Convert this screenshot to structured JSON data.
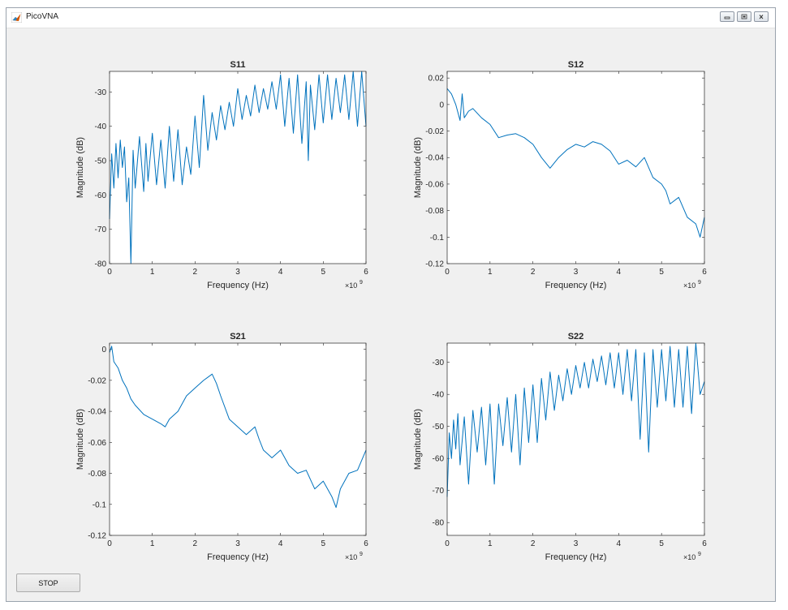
{
  "window": {
    "title": "PicoVNA",
    "app_icon": "matlab-icon",
    "controls": [
      "minimize-icon",
      "restore-icon",
      "close-icon"
    ]
  },
  "stop_button": {
    "label": "STOP"
  },
  "colors": {
    "line": "#0072bd",
    "axis": "#262626",
    "figure_bg": "#f0f0f0",
    "axes_bg": "#ffffff"
  },
  "chart_data": [
    {
      "type": "line",
      "title": "S11",
      "xlabel": "Frequency (Hz)",
      "ylabel": "Magnitude (dB)",
      "x_exponent_label": "×10",
      "x_exponent_power": "9",
      "xlim": [
        0,
        6
      ],
      "ylim": [
        -80,
        -24
      ],
      "xticks": [
        0,
        1,
        2,
        3,
        4,
        5,
        6
      ],
      "yticks": [
        -80,
        -70,
        -60,
        -50,
        -40,
        -30
      ],
      "xtick_labels": [
        "0",
        "1",
        "2",
        "3",
        "4",
        "5",
        "6"
      ],
      "ytick_labels": [
        "-80",
        "-70",
        "-60",
        "-50",
        "-40",
        "-30"
      ],
      "series": [
        {
          "x": [
            0,
            0.05,
            0.1,
            0.15,
            0.2,
            0.25,
            0.3,
            0.35,
            0.4,
            0.45,
            0.5,
            0.55,
            0.6,
            0.7,
            0.8,
            0.85,
            0.9,
            1.0,
            1.1,
            1.2,
            1.3,
            1.4,
            1.5,
            1.6,
            1.7,
            1.8,
            1.9,
            2.0,
            2.1,
            2.2,
            2.3,
            2.4,
            2.5,
            2.6,
            2.7,
            2.8,
            2.9,
            3.0,
            3.1,
            3.2,
            3.3,
            3.4,
            3.5,
            3.6,
            3.7,
            3.8,
            3.9,
            4.0,
            4.1,
            4.2,
            4.3,
            4.4,
            4.5,
            4.6,
            4.65,
            4.7,
            4.8,
            4.9,
            5.0,
            5.1,
            5.2,
            5.3,
            5.4,
            5.5,
            5.6,
            5.7,
            5.8,
            5.9,
            6.0
          ],
          "values": [
            -67,
            -48,
            -58,
            -45,
            -55,
            -44,
            -52,
            -46,
            -62,
            -55,
            -80,
            -47,
            -58,
            -43,
            -59,
            -45,
            -56,
            -42,
            -57,
            -44,
            -58,
            -40,
            -56,
            -41,
            -57,
            -46,
            -54,
            -37,
            -52,
            -31,
            -47,
            -36,
            -44,
            -34,
            -41,
            -33,
            -40,
            -29,
            -38,
            -31,
            -37,
            -28,
            -36,
            -29,
            -35,
            -27,
            -35,
            -25,
            -40,
            -26,
            -42,
            -25,
            -45,
            -27,
            -50,
            -28,
            -41,
            -25,
            -39,
            -25,
            -38,
            -26,
            -36,
            -25,
            -38,
            -24,
            -40,
            -24,
            -40
          ]
        }
      ]
    },
    {
      "type": "line",
      "title": "S12",
      "xlabel": "Frequency (Hz)",
      "ylabel": "Magnitude (dB)",
      "x_exponent_label": "×10",
      "x_exponent_power": "9",
      "xlim": [
        0,
        6
      ],
      "ylim": [
        -0.12,
        0.025
      ],
      "xticks": [
        0,
        1,
        2,
        3,
        4,
        5,
        6
      ],
      "yticks": [
        -0.12,
        -0.1,
        -0.08,
        -0.06,
        -0.04,
        -0.02,
        0,
        0.02
      ],
      "xtick_labels": [
        "0",
        "1",
        "2",
        "3",
        "4",
        "5",
        "6"
      ],
      "ytick_labels": [
        "-0.12",
        "-0.1",
        "-0.08",
        "-0.06",
        "-0.04",
        "-0.02",
        "0",
        "0.02"
      ],
      "series": [
        {
          "x": [
            0,
            0.1,
            0.2,
            0.3,
            0.35,
            0.4,
            0.5,
            0.6,
            0.8,
            1.0,
            1.2,
            1.4,
            1.6,
            1.8,
            2.0,
            2.2,
            2.4,
            2.6,
            2.8,
            3.0,
            3.2,
            3.4,
            3.6,
            3.8,
            4.0,
            4.2,
            4.4,
            4.6,
            4.8,
            5.0,
            5.1,
            5.2,
            5.4,
            5.6,
            5.8,
            5.9,
            6.0
          ],
          "values": [
            0.012,
            0.008,
            0.0,
            -0.012,
            0.008,
            -0.01,
            -0.005,
            -0.003,
            -0.01,
            -0.015,
            -0.025,
            -0.023,
            -0.022,
            -0.025,
            -0.03,
            -0.04,
            -0.048,
            -0.04,
            -0.034,
            -0.03,
            -0.032,
            -0.028,
            -0.03,
            -0.035,
            -0.045,
            -0.042,
            -0.047,
            -0.04,
            -0.055,
            -0.06,
            -0.065,
            -0.075,
            -0.07,
            -0.085,
            -0.09,
            -0.1,
            -0.085
          ]
        }
      ]
    },
    {
      "type": "line",
      "title": "S21",
      "xlabel": "Frequency (Hz)",
      "ylabel": "Magnitude (dB)",
      "x_exponent_label": "×10",
      "x_exponent_power": "9",
      "xlim": [
        0,
        6
      ],
      "ylim": [
        -0.12,
        0.004
      ],
      "xticks": [
        0,
        1,
        2,
        3,
        4,
        5,
        6
      ],
      "yticks": [
        -0.12,
        -0.1,
        -0.08,
        -0.06,
        -0.04,
        -0.02,
        0
      ],
      "xtick_labels": [
        "0",
        "1",
        "2",
        "3",
        "4",
        "5",
        "6"
      ],
      "ytick_labels": [
        "-0.12",
        "-0.1",
        "-0.08",
        "-0.06",
        "-0.04",
        "-0.02",
        "0"
      ],
      "series": [
        {
          "x": [
            0,
            0.05,
            0.1,
            0.2,
            0.3,
            0.4,
            0.5,
            0.6,
            0.8,
            1.0,
            1.2,
            1.3,
            1.4,
            1.6,
            1.8,
            2.0,
            2.2,
            2.4,
            2.5,
            2.6,
            2.8,
            3.0,
            3.2,
            3.4,
            3.5,
            3.6,
            3.8,
            4.0,
            4.2,
            4.4,
            4.6,
            4.8,
            5.0,
            5.2,
            5.3,
            5.4,
            5.6,
            5.8,
            6.0
          ],
          "values": [
            -0.002,
            0.002,
            -0.008,
            -0.012,
            -0.02,
            -0.025,
            -0.032,
            -0.036,
            -0.042,
            -0.045,
            -0.048,
            -0.05,
            -0.045,
            -0.04,
            -0.03,
            -0.025,
            -0.02,
            -0.016,
            -0.022,
            -0.03,
            -0.045,
            -0.05,
            -0.055,
            -0.05,
            -0.058,
            -0.065,
            -0.07,
            -0.065,
            -0.075,
            -0.08,
            -0.078,
            -0.09,
            -0.085,
            -0.095,
            -0.102,
            -0.09,
            -0.08,
            -0.078,
            -0.065
          ]
        }
      ]
    },
    {
      "type": "line",
      "title": "S22",
      "xlabel": "Frequency (Hz)",
      "ylabel": "Magnitude (dB)",
      "x_exponent_label": "×10",
      "x_exponent_power": "9",
      "xlim": [
        0,
        6
      ],
      "ylim": [
        -84,
        -24
      ],
      "xticks": [
        0,
        1,
        2,
        3,
        4,
        5,
        6
      ],
      "yticks": [
        -80,
        -70,
        -60,
        -50,
        -40,
        -30
      ],
      "xtick_labels": [
        "0",
        "1",
        "2",
        "3",
        "4",
        "5",
        "6"
      ],
      "ytick_labels": [
        "-80",
        "-70",
        "-60",
        "-50",
        "-40",
        "-30"
      ],
      "series": [
        {
          "x": [
            0,
            0.05,
            0.1,
            0.15,
            0.2,
            0.25,
            0.3,
            0.4,
            0.5,
            0.6,
            0.7,
            0.8,
            0.9,
            1.0,
            1.1,
            1.2,
            1.3,
            1.4,
            1.5,
            1.6,
            1.7,
            1.8,
            1.9,
            2.0,
            2.1,
            2.2,
            2.3,
            2.4,
            2.5,
            2.6,
            2.7,
            2.8,
            2.9,
            3.0,
            3.1,
            3.2,
            3.3,
            3.4,
            3.5,
            3.6,
            3.7,
            3.8,
            3.9,
            4.0,
            4.1,
            4.2,
            4.3,
            4.4,
            4.5,
            4.6,
            4.7,
            4.8,
            4.9,
            5.0,
            5.1,
            5.2,
            5.3,
            5.4,
            5.5,
            5.6,
            5.7,
            5.8,
            5.9,
            6.0
          ],
          "values": [
            -72,
            -52,
            -60,
            -48,
            -57,
            -46,
            -62,
            -47,
            -68,
            -45,
            -58,
            -44,
            -62,
            -43,
            -68,
            -43,
            -56,
            -41,
            -58,
            -40,
            -62,
            -38,
            -55,
            -37,
            -55,
            -35,
            -48,
            -33,
            -45,
            -34,
            -42,
            -32,
            -40,
            -31,
            -38,
            -30,
            -38,
            -29,
            -36,
            -28,
            -37,
            -27,
            -38,
            -27,
            -40,
            -26,
            -42,
            -26,
            -54,
            -27,
            -58,
            -26,
            -44,
            -26,
            -42,
            -25,
            -44,
            -26,
            -44,
            -25,
            -46,
            -24,
            -40,
            -36
          ]
        }
      ]
    }
  ]
}
